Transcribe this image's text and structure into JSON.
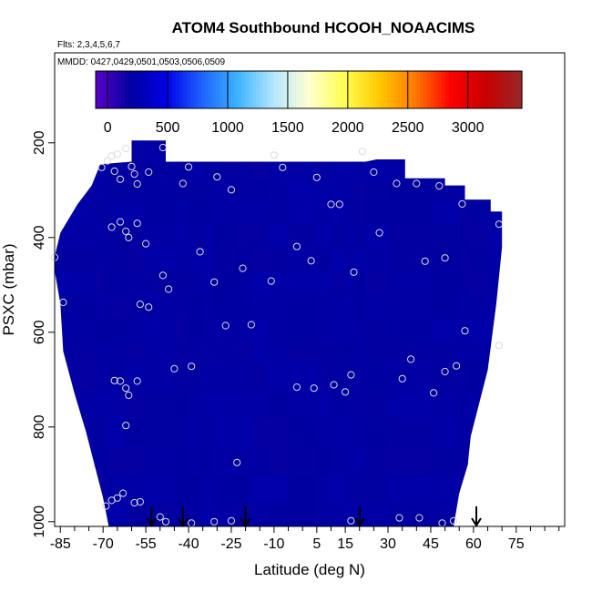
{
  "chart_data": {
    "type": "heatmap",
    "title": "ATOM4 Southbound HCOOH_NOAACIMS",
    "subtitle": "Flts: 2,3,4,5,6,7",
    "annotation": "MMDD: 0427,0429,0501,0503,0506,0509",
    "xlabel": "Latitude (deg N)",
    "ylabel": "PSXC (mbar)",
    "xlim": [
      -87,
      92
    ],
    "ylim": [
      1010,
      10
    ],
    "x_ticks": [
      -85,
      -70,
      -55,
      -40,
      -25,
      -10,
      5,
      15,
      30,
      45,
      60,
      75
    ],
    "x_ticks_text": [
      "-85",
      "-70",
      "-55",
      "-40",
      "-25",
      "-10",
      "5",
      "15",
      "30",
      "45",
      "60",
      "75"
    ],
    "x_minor_ticks": [
      -80,
      -75,
      -65,
      -60,
      -50,
      -45,
      -35,
      -30,
      -20,
      -15,
      -5,
      0,
      10,
      20,
      25,
      35,
      40,
      50,
      55,
      65,
      70,
      80,
      85,
      90
    ],
    "y_ticks": [
      200,
      400,
      600,
      800,
      1000
    ],
    "y_ticks_text": [
      "200",
      "400",
      "600",
      "800",
      "1000"
    ],
    "colorbar": {
      "min": -100,
      "max": 3450,
      "ticks": [
        0,
        500,
        1000,
        1500,
        2000,
        2500,
        3000
      ],
      "ticks_text": [
        "0",
        "500",
        "1000",
        "1500",
        "2000",
        "2500",
        "3000"
      ],
      "colors": [
        "#5a00c8",
        "#0000a0",
        "#0000e6",
        "#1e64ff",
        "#3cb4ff",
        "#b4e6ff",
        "#ffffd2",
        "#ffff50",
        "#ffc800",
        "#ff7800",
        "#ff0000",
        "#c80000",
        "#962828"
      ]
    },
    "field": {
      "base_value": 210,
      "lat_edges": [
        -87,
        -73,
        -68,
        -62,
        -56,
        -45,
        -40,
        -35,
        -32,
        -23,
        -18,
        -12,
        -5,
        5,
        10,
        15,
        18,
        22,
        30,
        45,
        55,
        58,
        66,
        70
      ],
      "press_edges": [
        1010,
        960,
        900,
        840,
        780,
        720,
        660,
        620,
        570,
        520,
        470,
        420,
        370,
        320,
        280,
        240,
        205,
        190
      ],
      "bottom_edge": [
        [
          -68,
          1010
        ],
        [
          -70,
          950
        ],
        [
          -73,
          880
        ],
        [
          -76,
          810
        ],
        [
          -80,
          730
        ],
        [
          -84,
          640
        ],
        [
          -85,
          540
        ],
        [
          -87,
          470
        ],
        [
          -87,
          440
        ],
        [
          -85,
          390
        ],
        [
          -79,
          330
        ],
        [
          -74,
          290
        ],
        [
          -71,
          245
        ],
        [
          -60,
          240
        ],
        [
          -60,
          195
        ],
        [
          -48,
          195
        ],
        [
          -48,
          240
        ],
        [
          8,
          240
        ],
        [
          22,
          240
        ],
        [
          26,
          235
        ],
        [
          36,
          235
        ],
        [
          36,
          275
        ],
        [
          50,
          275
        ],
        [
          50,
          290
        ],
        [
          57,
          290
        ],
        [
          57,
          320
        ],
        [
          66,
          320
        ],
        [
          66,
          345
        ],
        [
          70,
          345
        ],
        [
          70,
          420
        ],
        [
          68,
          540
        ],
        [
          65,
          680
        ],
        [
          59,
          820
        ],
        [
          58,
          880
        ],
        [
          55,
          940
        ],
        [
          53,
          1010
        ]
      ],
      "anomalies": [
        {
          "lat_range": [
            -62,
            -55
          ],
          "press_range": [
            330,
            470
          ],
          "value": 120
        },
        {
          "lat_range": [
            -40,
            -18
          ],
          "press_range": [
            510,
            590
          ],
          "value": 70
        },
        {
          "lat_range": [
            -42,
            -22
          ],
          "press_range": [
            560,
            650
          ],
          "value": 40
        },
        {
          "lat_range": [
            -35,
            -25
          ],
          "press_range": [
            570,
            610
          ],
          "value": 0
        },
        {
          "lat_range": [
            -22,
            18
          ],
          "press_range": [
            520,
            600
          ],
          "value": 260
        },
        {
          "lat_range": [
            18,
            26
          ],
          "press_range": [
            720,
            1010
          ],
          "value": 40
        },
        {
          "lat_range": [
            26,
            55
          ],
          "press_range": [
            400,
            1010
          ],
          "value": 10
        },
        {
          "lat_range": [
            32,
            48
          ],
          "press_range": [
            240,
            420
          ],
          "value": 80
        },
        {
          "lat_range": [
            48,
            66
          ],
          "press_range": [
            320,
            650
          ],
          "value": 50
        },
        {
          "lat_range": [
            -15,
            25
          ],
          "press_range": [
            240,
            360
          ],
          "value": 180
        },
        {
          "lat_range": [
            -73,
            -62
          ],
          "press_range": [
            250,
            500
          ],
          "value": 190
        },
        {
          "lat_range": [
            -85,
            -78
          ],
          "press_range": [
            440,
            700
          ],
          "value": 230
        },
        {
          "lat_range": [
            -30,
            -10
          ],
          "press_range": [
            620,
            700
          ],
          "value": 150
        },
        {
          "lat_range": [
            -40,
            25
          ],
          "press_range": [
            840,
            1010
          ],
          "value": 250
        }
      ]
    },
    "observations": [
      [
        -70.5,
        252
      ],
      [
        -68.5,
        238
      ],
      [
        -67,
        228
      ],
      [
        -65,
        224
      ],
      [
        -62,
        212
      ],
      [
        -66,
        260
      ],
      [
        -64,
        277
      ],
      [
        -60,
        250
      ],
      [
        -59,
        266
      ],
      [
        -58,
        287
      ],
      [
        -54,
        262
      ],
      [
        -49,
        210
      ],
      [
        -42,
        286
      ],
      [
        -40,
        251
      ],
      [
        -30,
        272
      ],
      [
        -25,
        299
      ],
      [
        -10,
        226
      ],
      [
        -7,
        252
      ],
      [
        5,
        273
      ],
      [
        10,
        330
      ],
      [
        13,
        330
      ],
      [
        21,
        218
      ],
      [
        25,
        262
      ],
      [
        33,
        286
      ],
      [
        40,
        286
      ],
      [
        48,
        291
      ],
      [
        56,
        329
      ],
      [
        -67,
        378
      ],
      [
        -64,
        367
      ],
      [
        -62,
        387
      ],
      [
        -61,
        400
      ],
      [
        -58,
        370
      ],
      [
        -55,
        413
      ],
      [
        -36,
        430
      ],
      [
        -21,
        465
      ],
      [
        -11,
        492
      ],
      [
        -2,
        419
      ],
      [
        3,
        449
      ],
      [
        18,
        473
      ],
      [
        27,
        390
      ],
      [
        43,
        450
      ],
      [
        50,
        443
      ],
      [
        69,
        372
      ],
      [
        -87,
        442
      ],
      [
        -84,
        537
      ],
      [
        -57,
        541
      ],
      [
        -54,
        547
      ],
      [
        -49,
        480
      ],
      [
        -47,
        509
      ],
      [
        -31,
        494
      ],
      [
        -27,
        586
      ],
      [
        -18,
        584
      ],
      [
        -66,
        702
      ],
      [
        -64,
        703
      ],
      [
        -62,
        718
      ],
      [
        -61,
        733
      ],
      [
        -58,
        703
      ],
      [
        -45,
        677
      ],
      [
        -39,
        672
      ],
      [
        -2,
        716
      ],
      [
        4,
        718
      ],
      [
        11,
        711
      ],
      [
        15,
        726
      ],
      [
        17,
        690
      ],
      [
        35,
        698
      ],
      [
        38,
        657
      ],
      [
        46,
        728
      ],
      [
        50,
        683
      ],
      [
        54,
        671
      ],
      [
        57,
        597
      ],
      [
        69,
        628
      ],
      [
        -62,
        797
      ],
      [
        -23,
        875
      ],
      [
        -67,
        955
      ],
      [
        -65,
        950
      ],
      [
        -63,
        940
      ],
      [
        -59,
        960
      ],
      [
        -57,
        958
      ],
      [
        -69,
        967
      ],
      [
        -50,
        990
      ],
      [
        -48,
        1000
      ],
      [
        -39,
        1003
      ],
      [
        -31,
        1000
      ],
      [
        -25,
        998
      ],
      [
        17,
        998
      ],
      [
        34,
        992
      ],
      [
        41,
        992
      ],
      [
        49,
        1003
      ],
      [
        53,
        998
      ]
    ],
    "flight_markers": [
      -53,
      -42,
      -20,
      20,
      61
    ]
  }
}
